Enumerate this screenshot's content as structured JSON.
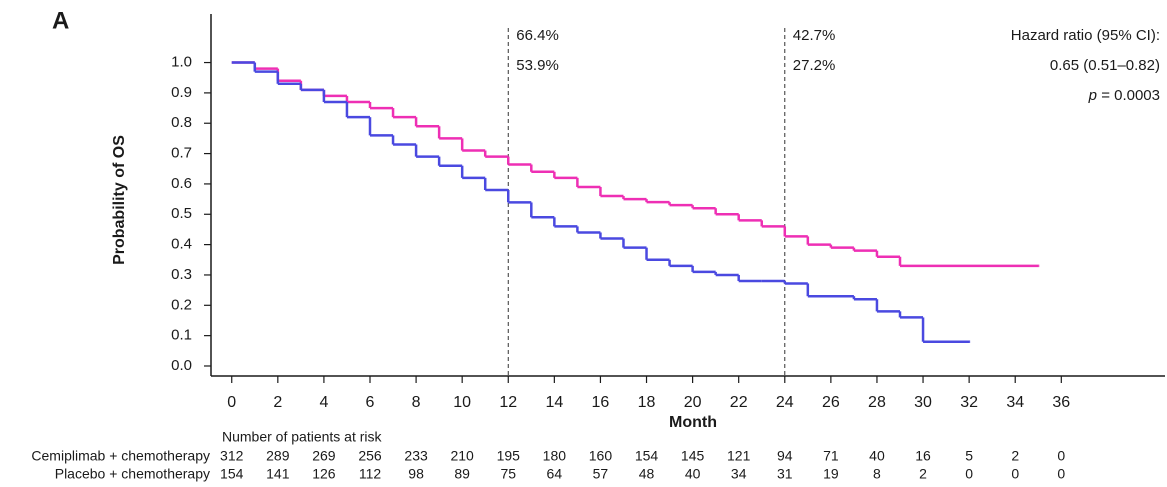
{
  "chart_data": {
    "type": "step",
    "panel_label": "A",
    "xlabel": "Month",
    "ylabel": "Probability of OS",
    "xlim": [
      -0.9,
      40.5
    ],
    "ylim": [
      -0.033,
      1.16
    ],
    "xticks": [
      0,
      2,
      4,
      6,
      8,
      10,
      12,
      14,
      16,
      18,
      20,
      22,
      24,
      26,
      28,
      30,
      32,
      34,
      36
    ],
    "yticks": [
      {
        "value": 0,
        "label": "0.0"
      },
      0.1,
      0.2,
      0.3,
      0.4,
      0.5,
      0.6,
      0.7,
      0.8,
      0.9,
      {
        "value": 1,
        "label": "1.0"
      }
    ],
    "series": [
      {
        "name": "Cemiplimab + chemotherapy",
        "color": "#ee2fb4",
        "x": [
          0,
          1,
          2,
          3,
          4,
          5,
          6,
          7,
          8,
          9,
          10,
          11,
          12,
          13,
          14,
          15,
          16,
          17,
          18,
          19,
          20,
          21,
          22,
          23,
          24,
          25,
          26,
          27,
          28,
          29,
          35
        ],
        "values": [
          1.0,
          0.98,
          0.94,
          0.91,
          0.89,
          0.87,
          0.85,
          0.82,
          0.79,
          0.75,
          0.71,
          0.69,
          0.664,
          0.64,
          0.62,
          0.59,
          0.56,
          0.55,
          0.54,
          0.53,
          0.52,
          0.5,
          0.48,
          0.46,
          0.427,
          0.4,
          0.39,
          0.38,
          0.36,
          0.33,
          0.33
        ]
      },
      {
        "name": "Placebo + chemotherapy",
        "color": "#4a49e0",
        "x": [
          0,
          1,
          2,
          3,
          4,
          5,
          6,
          7,
          8,
          9,
          10,
          11,
          12,
          13,
          14,
          15,
          16,
          17,
          18,
          19,
          20,
          21,
          22,
          23,
          24,
          25,
          27,
          28,
          29,
          30,
          32
        ],
        "values": [
          1.0,
          0.97,
          0.93,
          0.91,
          0.87,
          0.82,
          0.76,
          0.73,
          0.69,
          0.66,
          0.62,
          0.58,
          0.539,
          0.49,
          0.46,
          0.44,
          0.42,
          0.39,
          0.35,
          0.33,
          0.31,
          0.3,
          0.28,
          0.28,
          0.272,
          0.23,
          0.22,
          0.18,
          0.16,
          0.08,
          0.08
        ]
      }
    ],
    "reference_lines": [
      {
        "x": 12,
        "labels": [
          "66.4%",
          "53.9%"
        ]
      },
      {
        "x": 24,
        "labels": [
          "42.7%",
          "27.2%"
        ]
      }
    ],
    "stats": {
      "line1": "Hazard ratio (95% CI):",
      "line2": "0.65 (0.51–0.82)",
      "p_symbol": "p",
      "p_value": "= 0.0003"
    },
    "risk_table": {
      "title": "Number of patients at risk",
      "rows": [
        [
          312,
          289,
          269,
          256,
          233,
          210,
          195,
          180,
          160,
          154,
          145,
          121,
          94,
          71,
          40,
          16,
          5,
          2,
          0
        ],
        [
          154,
          141,
          126,
          112,
          98,
          89,
          75,
          64,
          57,
          48,
          40,
          34,
          31,
          19,
          8,
          2,
          0,
          0,
          0
        ]
      ]
    }
  }
}
